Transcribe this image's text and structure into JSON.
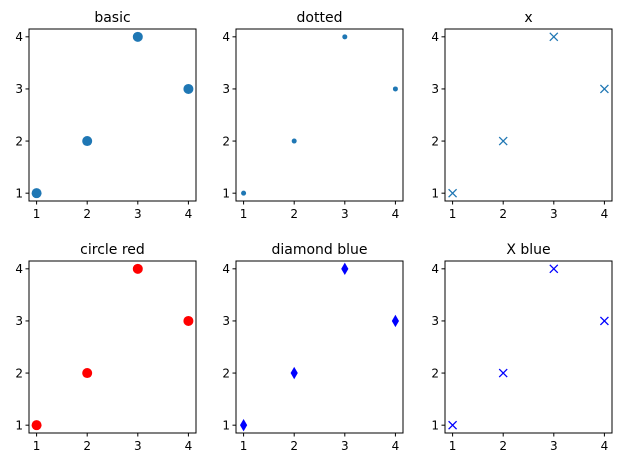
{
  "chart_data": [
    {
      "type": "scatter",
      "title": "basic",
      "x": [
        1,
        2,
        3,
        4
      ],
      "y": [
        1,
        2,
        4,
        3
      ],
      "xlim": [
        0.85,
        4.15
      ],
      "ylim": [
        0.85,
        4.15
      ],
      "xticks": [
        "1",
        "2",
        "3",
        "4"
      ],
      "yticks": [
        "1",
        "2",
        "3",
        "4"
      ],
      "marker": "circle",
      "marker_size": "large",
      "color": "#1f77b4",
      "grid": false
    },
    {
      "type": "scatter",
      "title": "dotted",
      "x": [
        1,
        2,
        3,
        4
      ],
      "y": [
        1,
        2,
        4,
        3
      ],
      "xlim": [
        0.85,
        4.15
      ],
      "ylim": [
        0.85,
        4.15
      ],
      "xticks": [
        "1",
        "2",
        "3",
        "4"
      ],
      "yticks": [
        "1",
        "2",
        "3",
        "4"
      ],
      "marker": "circle",
      "marker_size": "small",
      "color": "#1f77b4",
      "grid": false
    },
    {
      "type": "scatter",
      "title": "x",
      "x": [
        1,
        2,
        3,
        4
      ],
      "y": [
        1,
        2,
        4,
        3
      ],
      "xlim": [
        0.85,
        4.15
      ],
      "ylim": [
        0.85,
        4.15
      ],
      "xticks": [
        "1",
        "2",
        "3",
        "4"
      ],
      "yticks": [
        "1",
        "2",
        "3",
        "4"
      ],
      "marker": "x",
      "marker_size": "medium",
      "color": "#1f77b4",
      "grid": false
    },
    {
      "type": "scatter",
      "title": "circle red",
      "x": [
        1,
        2,
        3,
        4
      ],
      "y": [
        1,
        2,
        4,
        3
      ],
      "xlim": [
        0.85,
        4.15
      ],
      "ylim": [
        0.85,
        4.15
      ],
      "xticks": [
        "1",
        "2",
        "3",
        "4"
      ],
      "yticks": [
        "1",
        "2",
        "3",
        "4"
      ],
      "marker": "circle",
      "marker_size": "large",
      "color": "#ff0000",
      "grid": false
    },
    {
      "type": "scatter",
      "title": "diamond blue",
      "x": [
        1,
        2,
        3,
        4
      ],
      "y": [
        1,
        2,
        4,
        3
      ],
      "xlim": [
        0.85,
        4.15
      ],
      "ylim": [
        0.85,
        4.15
      ],
      "xticks": [
        "1",
        "2",
        "3",
        "4"
      ],
      "yticks": [
        "1",
        "2",
        "3",
        "4"
      ],
      "marker": "diamond",
      "marker_size": "large",
      "color": "#0000ff",
      "grid": false
    },
    {
      "type": "scatter",
      "title": "X blue",
      "x": [
        1,
        2,
        3,
        4
      ],
      "y": [
        1,
        2,
        4,
        3
      ],
      "xlim": [
        0.85,
        4.15
      ],
      "ylim": [
        0.85,
        4.15
      ],
      "xticks": [
        "1",
        "2",
        "3",
        "4"
      ],
      "yticks": [
        "1",
        "2",
        "3",
        "4"
      ],
      "marker": "x",
      "marker_size": "medium",
      "color": "#0000ff",
      "grid": false
    }
  ]
}
